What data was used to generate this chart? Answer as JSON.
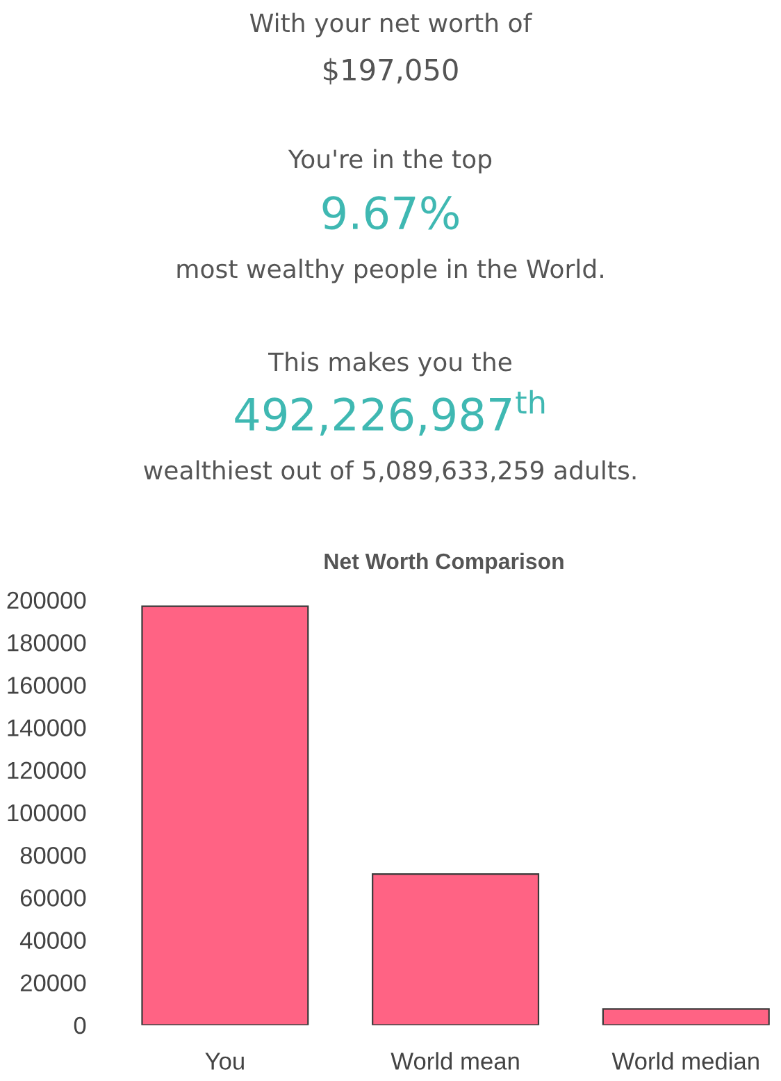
{
  "chart_data": {
    "type": "bar",
    "title": "Net Worth Comparison",
    "annotations": [
      "With your net worth of",
      "$197,050",
      "You're in the top",
      "9.67%",
      "most wealthy people in the World.",
      "This makes you the",
      "492,226,987$^{th}$",
      "wealthiest out of 5,089,633,259 adults."
    ],
    "categories": [
      "You",
      "World mean",
      "World median"
    ],
    "values": [
      197000,
      71000,
      7500
    ],
    "color": "#ff6384",
    "ylim": [
      0,
      200000
    ],
    "yticks": [
      0,
      20000,
      40000,
      60000,
      80000,
      100000,
      120000,
      140000,
      160000,
      180000,
      200000
    ],
    "grid": false,
    "legend": false
  }
}
